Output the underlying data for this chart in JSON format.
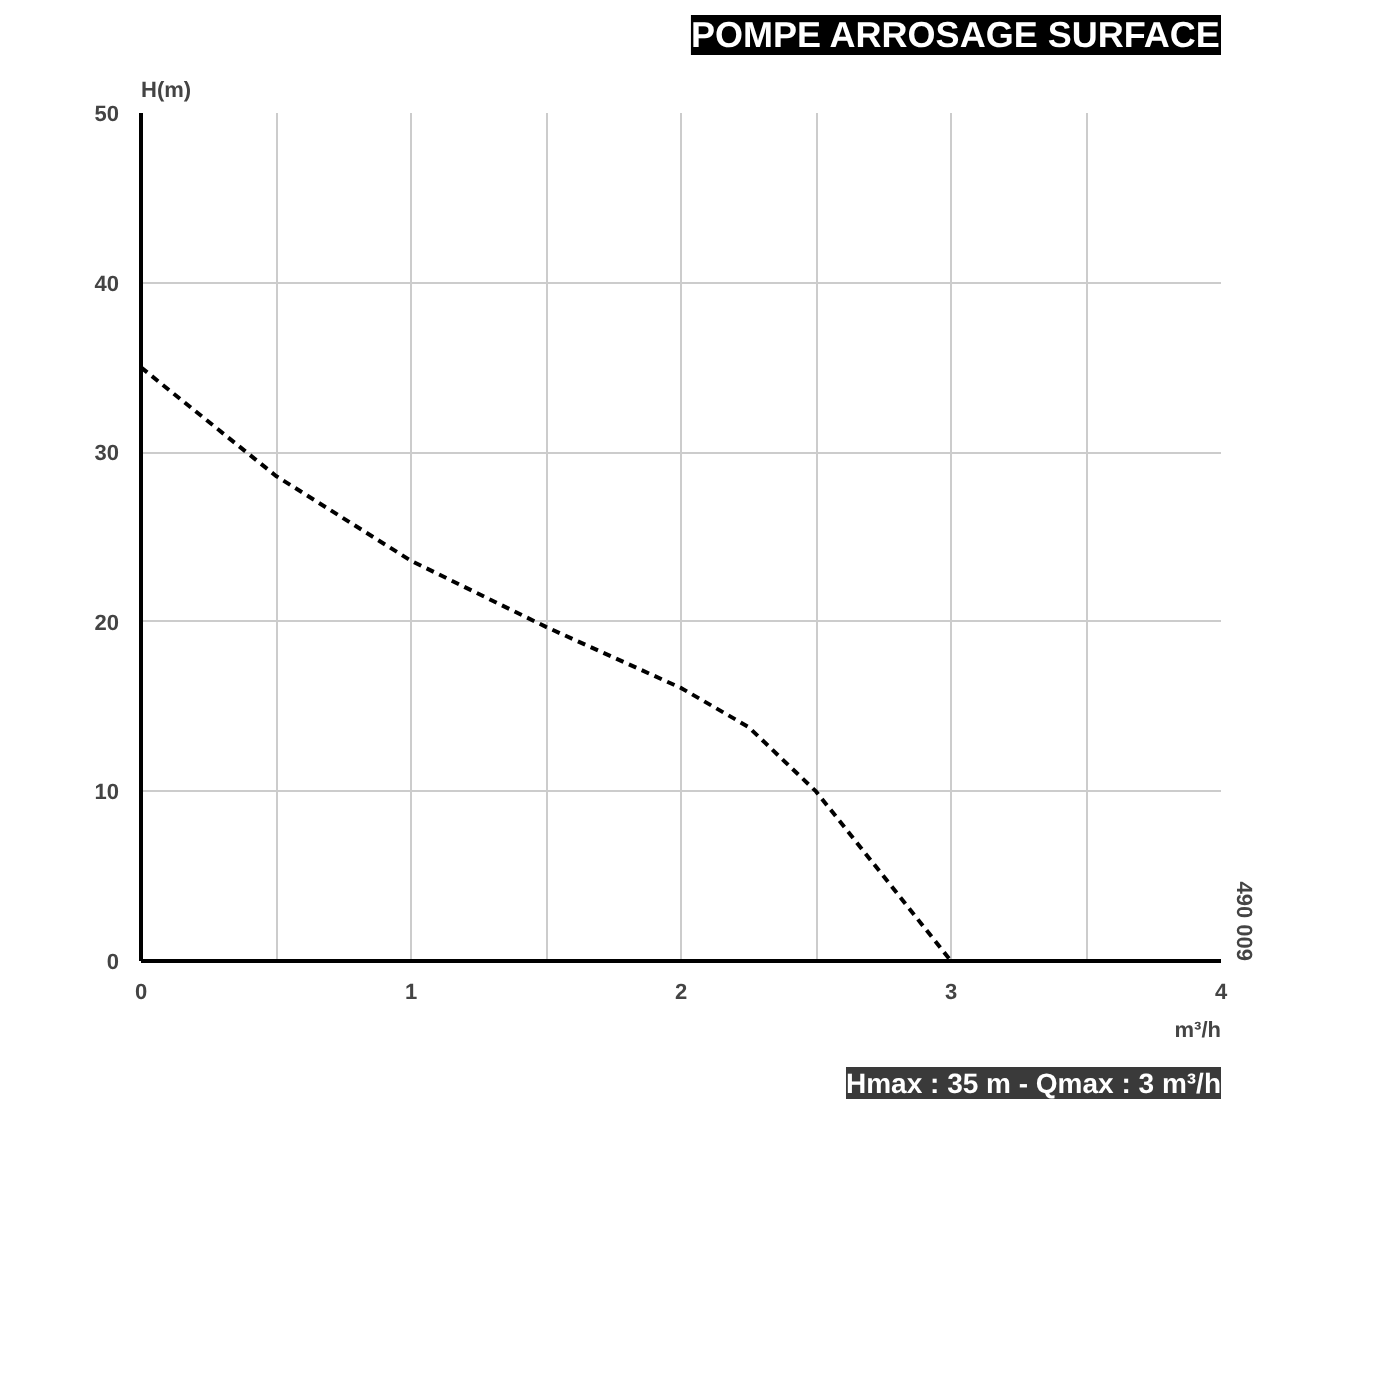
{
  "chart_data": {
    "type": "line",
    "title": "POMPE ARROSAGE SURFACE",
    "xlabel": "m³/h",
    "ylabel": "H(m)",
    "annotations": [
      "490 009",
      "Hmax : 35 m - Qmax : 3 m³/h"
    ],
    "x": [
      0,
      0.5,
      1,
      1.5,
      2,
      2.25,
      2.5,
      3
    ],
    "series": [
      {
        "color": "#000000",
        "values": [
          35,
          28.6,
          23.6,
          19.7,
          16.1,
          13.8,
          10,
          0
        ]
      }
    ],
    "xlim": [
      0,
      4
    ],
    "ylim": [
      0,
      50
    ],
    "xticks": [
      0,
      {
        "value": 0.5,
        "label": null
      },
      1,
      {
        "value": 1.5,
        "label": null
      },
      2,
      {
        "value": 2.5,
        "label": null
      },
      3,
      {
        "value": 3.5,
        "label": null
      },
      4
    ],
    "yticks": [
      0,
      10,
      20,
      30,
      40,
      50
    ],
    "grid": true,
    "marker": "none",
    "line_style": "dashed"
  }
}
